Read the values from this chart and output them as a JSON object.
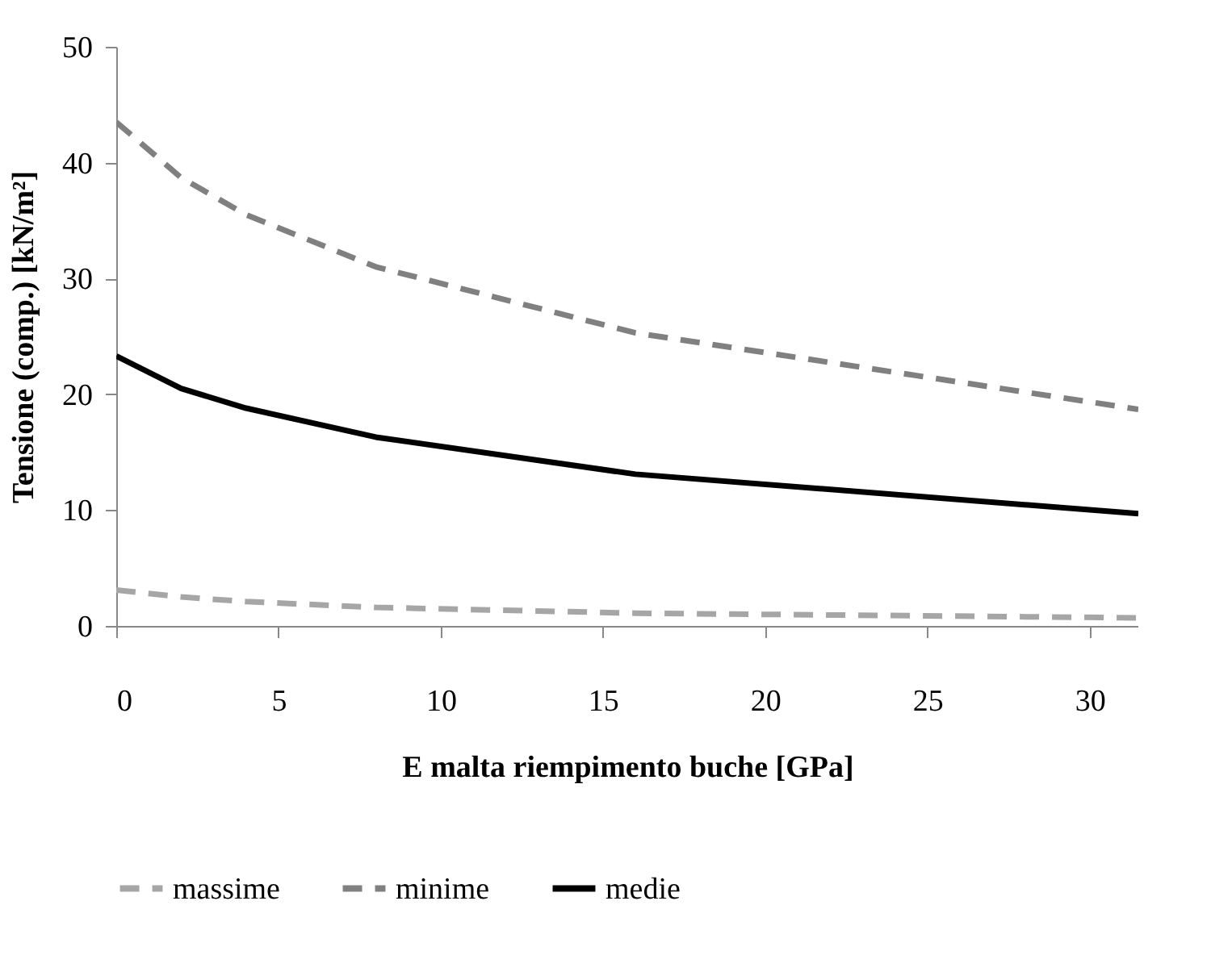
{
  "chart_data": {
    "type": "line",
    "xlabel": "E malta riempimento buche [GPa]",
    "ylabel": "Tensione (comp.) [kN/m²]",
    "xlim": [
      0,
      31.5
    ],
    "xticks": [
      0,
      5,
      10,
      15,
      20,
      25,
      30
    ],
    "ylim": [
      0,
      50
    ],
    "yticks": [
      0,
      10,
      20,
      30,
      40,
      50
    ],
    "grid": false,
    "legend": "bottom",
    "marker": "none",
    "x": [
      0,
      2,
      4,
      8,
      16,
      31.5
    ],
    "series": [
      {
        "name": "massime",
        "color": "#a6a6a6",
        "line_style": "dashed",
        "values": [
          3.1,
          2.5,
          2.1,
          1.6,
          1.1,
          0.7
        ]
      },
      {
        "name": "minime",
        "color": "#808080",
        "line_style": "dashed",
        "values": [
          43.5,
          38.7,
          35.5,
          31,
          25.3,
          18.7
        ]
      },
      {
        "name": "medie",
        "color": "#000000",
        "line_style": "solid",
        "values": [
          23.3,
          20.5,
          18.8,
          16.3,
          13.1,
          9.7
        ]
      }
    ]
  }
}
